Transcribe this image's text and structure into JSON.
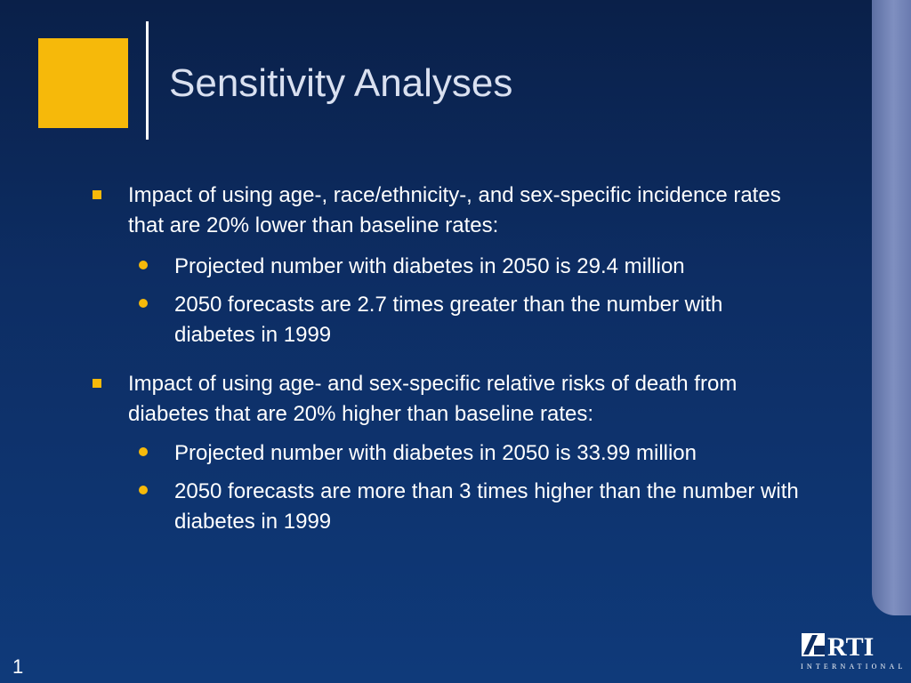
{
  "slide": {
    "title": "Sensitivity Analyses",
    "page_number": "1",
    "bullets": [
      {
        "text": "Impact of using age-, race/ethnicity-, and sex-specific incidence rates that are 20% lower than baseline rates:",
        "sub": [
          "Projected number with diabetes in 2050 is 29.4 million",
          "2050 forecasts are 2.7 times greater than the number with diabetes in 1999"
        ]
      },
      {
        "text": "Impact of using age- and sex-specific relative risks of death from diabetes that are 20% higher than baseline rates:",
        "sub": [
          "Projected number with diabetes in 2050 is 33.99 million",
          "2050 forecasts are more than 3 times higher than the number with diabetes in 1999"
        ]
      }
    ]
  },
  "logo": {
    "name": "RTI",
    "subtitle": "INTERNATIONAL"
  },
  "colors": {
    "accent": "#f6b90a",
    "background_top": "#0a2049",
    "background_bottom": "#0f3a7a",
    "title": "#d9e0f0"
  }
}
